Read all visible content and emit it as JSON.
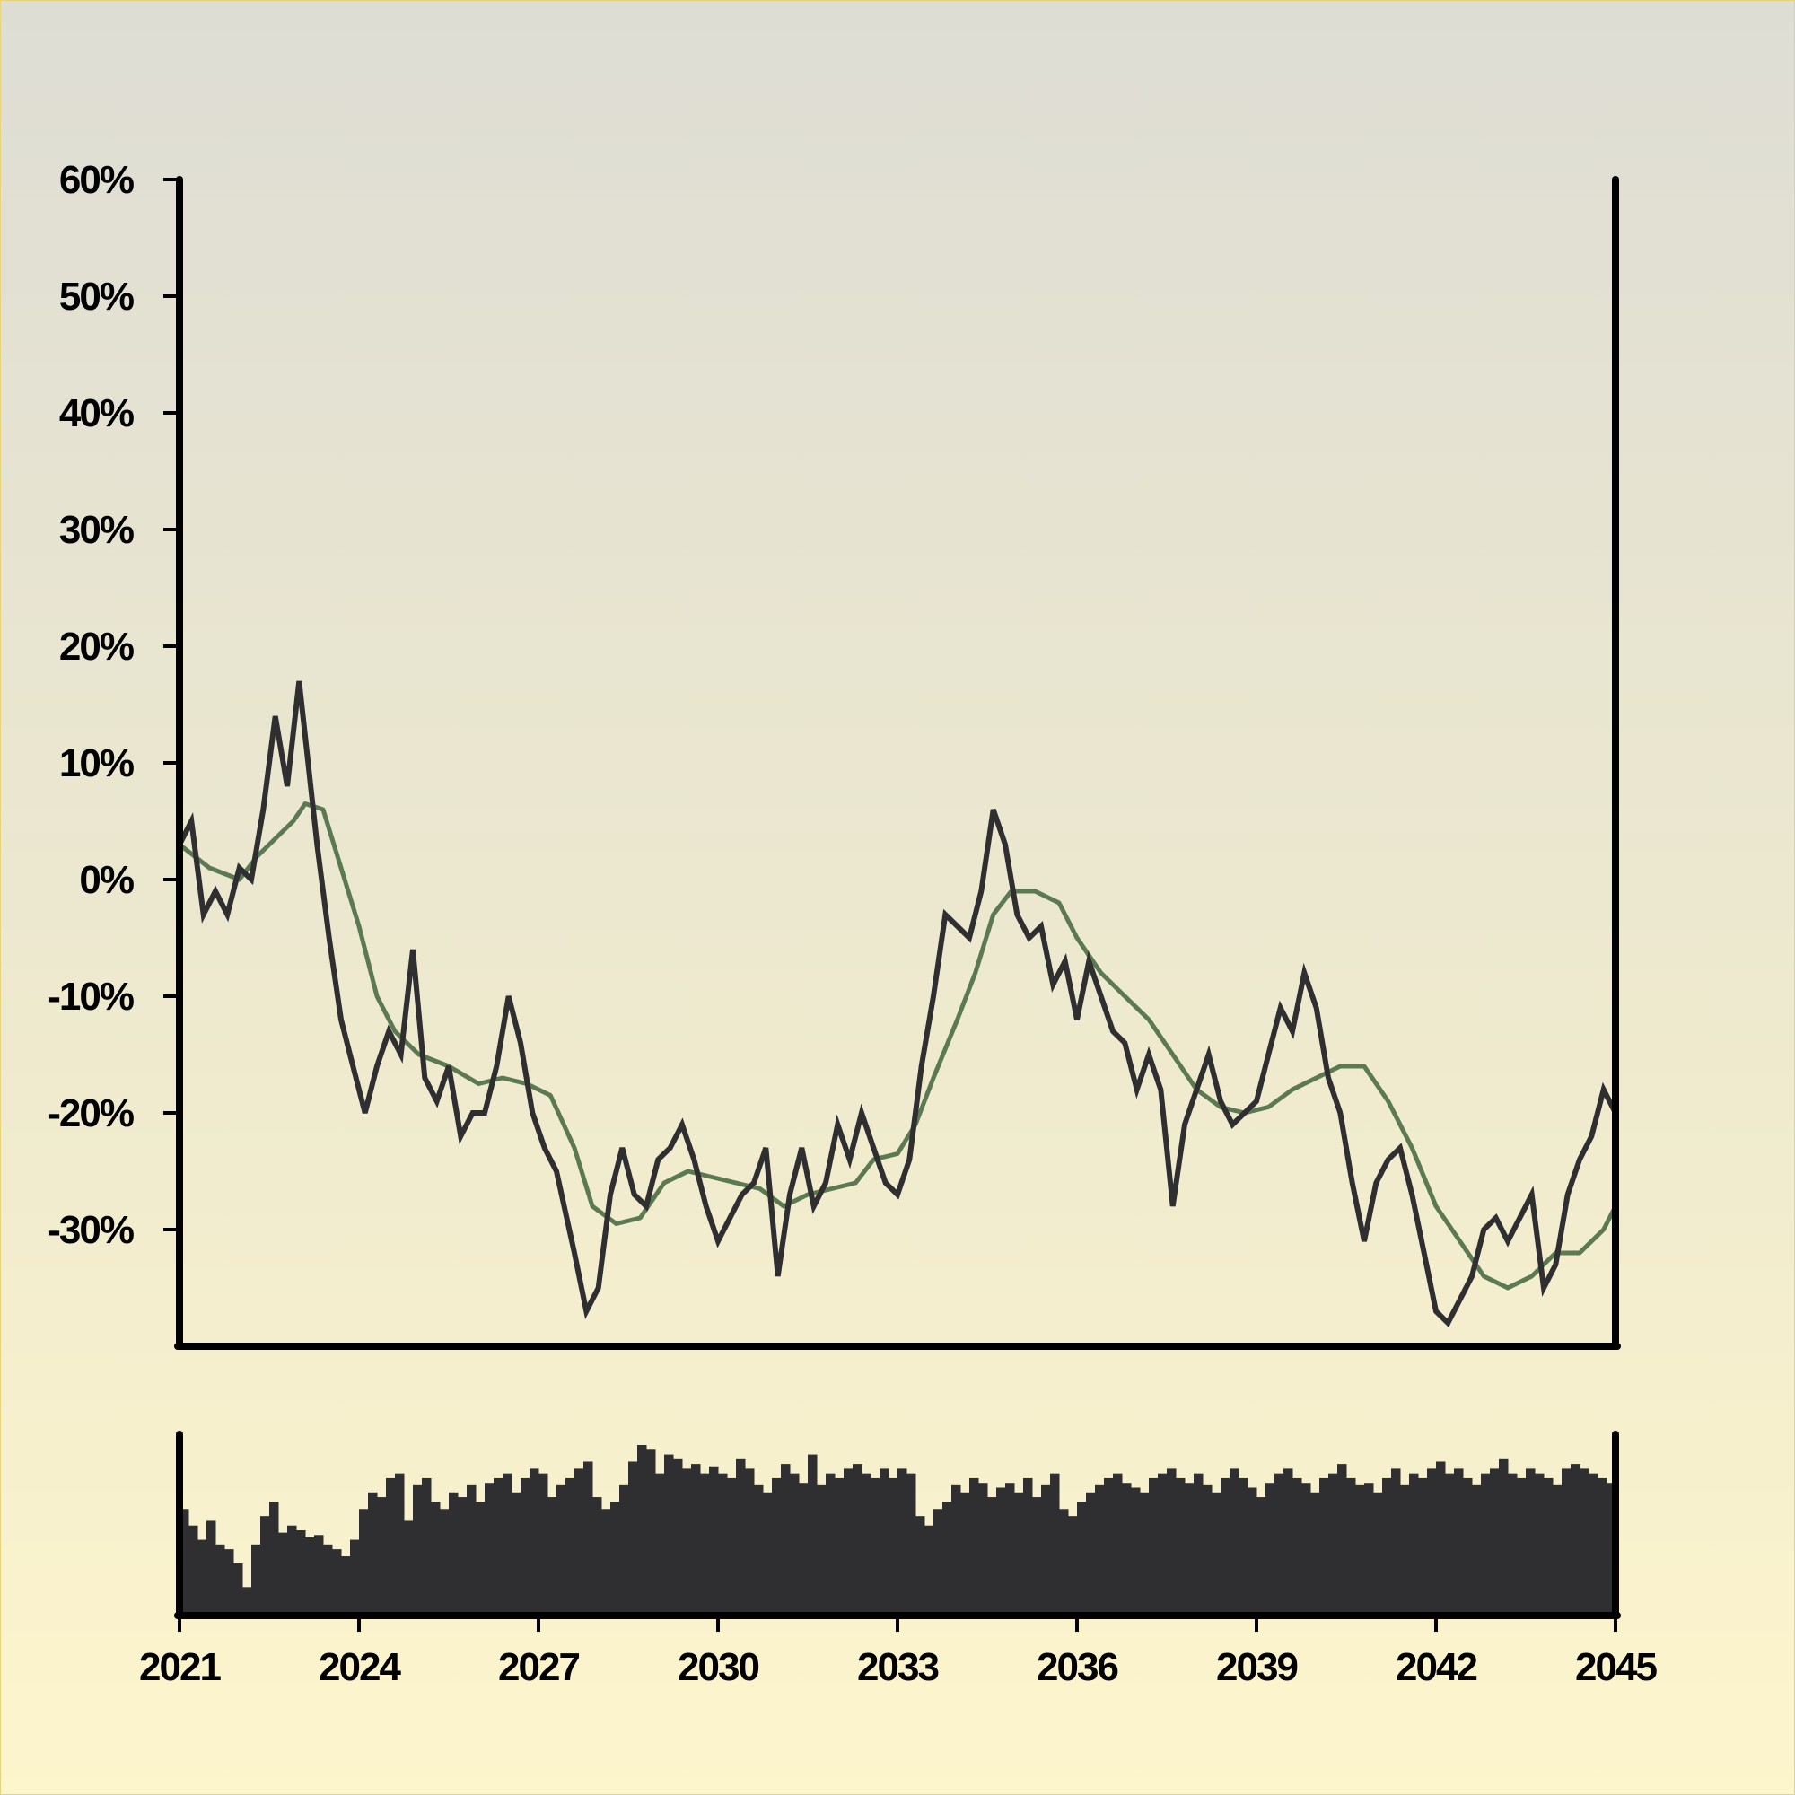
{
  "chart_data": {
    "type": "line",
    "title": "",
    "xlabel": "",
    "ylabel": "",
    "xlim": [
      2021,
      2045
    ],
    "ylim": [
      -40,
      60
    ],
    "y_ticks": [
      "60%",
      "50%",
      "40%",
      "30%",
      "20%",
      "10%",
      "0%",
      "-10%",
      "-20%",
      "-30%"
    ],
    "y_tick_values": [
      60,
      50,
      40,
      30,
      20,
      10,
      0,
      -10,
      -20,
      -30
    ],
    "x_ticks": [
      "2021",
      "2024",
      "2027",
      "2030",
      "2033",
      "2036",
      "2039",
      "2042",
      "2045"
    ],
    "x_tick_values": [
      2021,
      2024,
      2027,
      2030,
      2033,
      2036,
      2039,
      2042,
      2045
    ],
    "grid": false,
    "legend": "none",
    "series": [
      {
        "role": "price",
        "color": "#2f2e30",
        "points": [
          [
            2021.0,
            3
          ],
          [
            2021.2,
            5
          ],
          [
            2021.4,
            -3
          ],
          [
            2021.6,
            -1
          ],
          [
            2021.8,
            -3
          ],
          [
            2022.0,
            1
          ],
          [
            2022.2,
            0
          ],
          [
            2022.4,
            6
          ],
          [
            2022.6,
            14
          ],
          [
            2022.8,
            8
          ],
          [
            2023.0,
            17
          ],
          [
            2023.3,
            3
          ],
          [
            2023.5,
            -5
          ],
          [
            2023.7,
            -12
          ],
          [
            2023.9,
            -16
          ],
          [
            2024.1,
            -20
          ],
          [
            2024.3,
            -16
          ],
          [
            2024.5,
            -13
          ],
          [
            2024.7,
            -15
          ],
          [
            2024.9,
            -6
          ],
          [
            2025.1,
            -17
          ],
          [
            2025.3,
            -19
          ],
          [
            2025.5,
            -16
          ],
          [
            2025.7,
            -22
          ],
          [
            2025.9,
            -20
          ],
          [
            2026.1,
            -20
          ],
          [
            2026.3,
            -16
          ],
          [
            2026.5,
            -10
          ],
          [
            2026.7,
            -14
          ],
          [
            2026.9,
            -20
          ],
          [
            2027.1,
            -23
          ],
          [
            2027.3,
            -25
          ],
          [
            2027.6,
            -32
          ],
          [
            2027.8,
            -37
          ],
          [
            2028.0,
            -35
          ],
          [
            2028.2,
            -27
          ],
          [
            2028.4,
            -23
          ],
          [
            2028.6,
            -27
          ],
          [
            2028.8,
            -28
          ],
          [
            2029.0,
            -24
          ],
          [
            2029.2,
            -23
          ],
          [
            2029.4,
            -21
          ],
          [
            2029.6,
            -24
          ],
          [
            2029.8,
            -28
          ],
          [
            2030.0,
            -31
          ],
          [
            2030.2,
            -29
          ],
          [
            2030.4,
            -27
          ],
          [
            2030.6,
            -26
          ],
          [
            2030.8,
            -23
          ],
          [
            2031.0,
            -34
          ],
          [
            2031.2,
            -27
          ],
          [
            2031.4,
            -23
          ],
          [
            2031.6,
            -28
          ],
          [
            2031.8,
            -26
          ],
          [
            2032.0,
            -21
          ],
          [
            2032.2,
            -24
          ],
          [
            2032.4,
            -20
          ],
          [
            2032.6,
            -23
          ],
          [
            2032.8,
            -26
          ],
          [
            2033.0,
            -27
          ],
          [
            2033.2,
            -24
          ],
          [
            2033.4,
            -16
          ],
          [
            2033.6,
            -10
          ],
          [
            2033.8,
            -3
          ],
          [
            2034.0,
            -4
          ],
          [
            2034.2,
            -5
          ],
          [
            2034.4,
            -1
          ],
          [
            2034.6,
            6
          ],
          [
            2034.8,
            3
          ],
          [
            2035.0,
            -3
          ],
          [
            2035.2,
            -5
          ],
          [
            2035.4,
            -4
          ],
          [
            2035.6,
            -9
          ],
          [
            2035.8,
            -7
          ],
          [
            2036.0,
            -12
          ],
          [
            2036.2,
            -7
          ],
          [
            2036.4,
            -10
          ],
          [
            2036.6,
            -13
          ],
          [
            2036.8,
            -14
          ],
          [
            2037.0,
            -18
          ],
          [
            2037.2,
            -15
          ],
          [
            2037.4,
            -18
          ],
          [
            2037.6,
            -28
          ],
          [
            2037.8,
            -21
          ],
          [
            2038.0,
            -18
          ],
          [
            2038.2,
            -15
          ],
          [
            2038.4,
            -19
          ],
          [
            2038.6,
            -21
          ],
          [
            2038.8,
            -20
          ],
          [
            2039.0,
            -19
          ],
          [
            2039.2,
            -15
          ],
          [
            2039.4,
            -11
          ],
          [
            2039.6,
            -13
          ],
          [
            2039.8,
            -8
          ],
          [
            2040.0,
            -11
          ],
          [
            2040.2,
            -17
          ],
          [
            2040.4,
            -20
          ],
          [
            2040.6,
            -26
          ],
          [
            2040.8,
            -31
          ],
          [
            2041.0,
            -26
          ],
          [
            2041.2,
            -24
          ],
          [
            2041.4,
            -23
          ],
          [
            2041.6,
            -27
          ],
          [
            2041.8,
            -32
          ],
          [
            2042.0,
            -37
          ],
          [
            2042.2,
            -38
          ],
          [
            2042.4,
            -36
          ],
          [
            2042.6,
            -34
          ],
          [
            2042.8,
            -30
          ],
          [
            2043.0,
            -29
          ],
          [
            2043.2,
            -31
          ],
          [
            2043.4,
            -29
          ],
          [
            2043.6,
            -27
          ],
          [
            2043.8,
            -35
          ],
          [
            2044.0,
            -33
          ],
          [
            2044.2,
            -27
          ],
          [
            2044.4,
            -24
          ],
          [
            2044.6,
            -22
          ],
          [
            2044.8,
            -18
          ],
          [
            2045.0,
            -20
          ]
        ]
      },
      {
        "role": "moving-average",
        "color": "#5b7a53",
        "points": [
          [
            2021.0,
            3
          ],
          [
            2021.5,
            1
          ],
          [
            2022.0,
            0
          ],
          [
            2022.3,
            2
          ],
          [
            2022.7,
            4
          ],
          [
            2022.9,
            5
          ],
          [
            2023.1,
            6.5
          ],
          [
            2023.4,
            6
          ],
          [
            2023.7,
            1
          ],
          [
            2024.0,
            -4
          ],
          [
            2024.3,
            -10
          ],
          [
            2024.6,
            -13
          ],
          [
            2025.0,
            -15
          ],
          [
            2025.5,
            -16
          ],
          [
            2026.0,
            -17.5
          ],
          [
            2026.4,
            -17
          ],
          [
            2026.8,
            -17.5
          ],
          [
            2027.2,
            -18.5
          ],
          [
            2027.6,
            -23
          ],
          [
            2027.9,
            -28
          ],
          [
            2028.3,
            -29.5
          ],
          [
            2028.7,
            -29
          ],
          [
            2029.1,
            -26
          ],
          [
            2029.5,
            -25
          ],
          [
            2029.9,
            -25.5
          ],
          [
            2030.3,
            -26
          ],
          [
            2030.7,
            -26.5
          ],
          [
            2031.1,
            -28
          ],
          [
            2031.5,
            -27
          ],
          [
            2031.9,
            -26.5
          ],
          [
            2032.3,
            -26
          ],
          [
            2032.6,
            -24
          ],
          [
            2033.0,
            -23.5
          ],
          [
            2033.3,
            -21
          ],
          [
            2033.6,
            -17
          ],
          [
            2034.0,
            -12
          ],
          [
            2034.3,
            -8
          ],
          [
            2034.6,
            -3
          ],
          [
            2034.9,
            -1
          ],
          [
            2035.3,
            -1
          ],
          [
            2035.7,
            -2
          ],
          [
            2036.0,
            -5
          ],
          [
            2036.4,
            -8
          ],
          [
            2036.8,
            -10
          ],
          [
            2037.2,
            -12
          ],
          [
            2037.6,
            -15
          ],
          [
            2038.0,
            -18
          ],
          [
            2038.4,
            -19.5
          ],
          [
            2038.8,
            -20
          ],
          [
            2039.2,
            -19.5
          ],
          [
            2039.6,
            -18
          ],
          [
            2040.0,
            -17
          ],
          [
            2040.4,
            -16
          ],
          [
            2040.8,
            -16
          ],
          [
            2041.2,
            -19
          ],
          [
            2041.6,
            -23
          ],
          [
            2042.0,
            -28
          ],
          [
            2042.4,
            -31
          ],
          [
            2042.8,
            -34
          ],
          [
            2043.2,
            -35
          ],
          [
            2043.6,
            -34
          ],
          [
            2044.0,
            -32
          ],
          [
            2044.4,
            -32
          ],
          [
            2044.8,
            -30
          ],
          [
            2045.0,
            -28
          ]
        ]
      }
    ],
    "volume": {
      "color": "#2f2e30",
      "values": [
        45,
        38,
        32,
        40,
        30,
        28,
        22,
        12,
        30,
        42,
        48,
        35,
        38,
        36,
        33,
        34,
        30,
        28,
        25,
        32,
        45,
        52,
        50,
        58,
        60,
        40,
        55,
        58,
        48,
        45,
        52,
        50,
        55,
        48,
        56,
        58,
        60,
        52,
        58,
        62,
        60,
        50,
        55,
        58,
        62,
        65,
        50,
        45,
        48,
        55,
        65,
        72,
        70,
        60,
        68,
        66,
        62,
        64,
        60,
        63,
        60,
        58,
        66,
        62,
        55,
        52,
        58,
        64,
        60,
        56,
        68,
        55,
        60,
        58,
        62,
        64,
        60,
        58,
        62,
        58,
        62,
        60,
        42,
        38,
        45,
        48,
        55,
        52,
        58,
        56,
        50,
        54,
        56,
        52,
        58,
        50,
        55,
        60,
        45,
        42,
        48,
        52,
        55,
        58,
        60,
        56,
        54,
        52,
        58,
        60,
        62,
        58,
        56,
        60,
        55,
        52,
        58,
        62,
        58,
        54,
        50,
        56,
        60,
        62,
        58,
        56,
        52,
        58,
        60,
        64,
        58,
        55,
        56,
        52,
        58,
        62,
        55,
        60,
        58,
        62,
        65,
        60,
        62,
        58,
        55,
        60,
        62,
        66,
        60,
        58,
        62,
        60,
        58,
        55,
        62,
        64,
        62,
        60,
        58,
        56
      ]
    }
  }
}
